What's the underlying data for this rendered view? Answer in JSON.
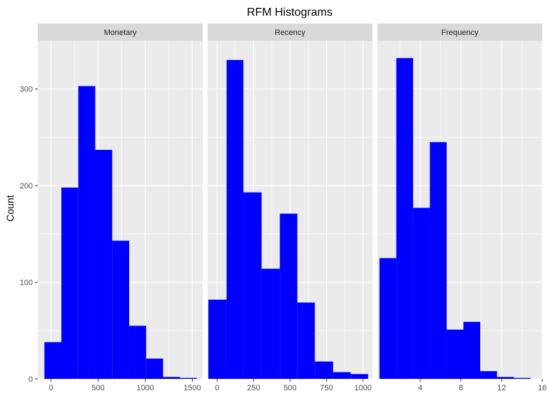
{
  "chart_data": {
    "type": "bar",
    "title": "RFM Histograms",
    "ylabel": "Count",
    "xlabel": "",
    "ylim": [
      0,
      350
    ],
    "yticks": [
      0,
      100,
      200,
      300
    ],
    "grid": true,
    "colors": {
      "bar": "#0000ff",
      "panel": "#ebebeb",
      "strip": "#d9d9d9",
      "grid": "#ffffff"
    },
    "panels": [
      {
        "name": "Monetary",
        "xlim": [
          -140,
          1610
        ],
        "xticks": [
          0,
          500,
          1000,
          1500
        ],
        "tick_labels": [
          "0",
          "500",
          "1000",
          "1500"
        ],
        "bins": [
          {
            "x0": -70,
            "x1": 110,
            "count": 38
          },
          {
            "x0": 110,
            "x1": 290,
            "count": 198
          },
          {
            "x0": 290,
            "x1": 470,
            "count": 303
          },
          {
            "x0": 470,
            "x1": 650,
            "count": 237
          },
          {
            "x0": 650,
            "x1": 830,
            "count": 143
          },
          {
            "x0": 830,
            "x1": 1010,
            "count": 55
          },
          {
            "x0": 1010,
            "x1": 1190,
            "count": 21
          },
          {
            "x0": 1190,
            "x1": 1370,
            "count": 2
          },
          {
            "x0": 1370,
            "x1": 1550,
            "count": 1
          }
        ]
      },
      {
        "name": "Recency",
        "xlim": [
          -65,
          1065
        ],
        "xticks": [
          0,
          250,
          500,
          750,
          1000
        ],
        "tick_labels": [
          "0",
          "250",
          "500",
          "750",
          "1000"
        ],
        "bins": [
          {
            "x0": -60,
            "x1": 65,
            "count": 82
          },
          {
            "x0": 65,
            "x1": 180,
            "count": 330
          },
          {
            "x0": 180,
            "x1": 305,
            "count": 193
          },
          {
            "x0": 305,
            "x1": 430,
            "count": 114
          },
          {
            "x0": 430,
            "x1": 550,
            "count": 171
          },
          {
            "x0": 550,
            "x1": 670,
            "count": 79
          },
          {
            "x0": 670,
            "x1": 795,
            "count": 18
          },
          {
            "x0": 795,
            "x1": 915,
            "count": 7
          },
          {
            "x0": 915,
            "x1": 1035,
            "count": 5
          }
        ]
      },
      {
        "name": "Frequency",
        "xlim": [
          -0.2,
          16.0
        ],
        "xticks": [
          4,
          8,
          12,
          16
        ],
        "tick_labels": [
          "4",
          "8",
          "12",
          "16"
        ],
        "bins": [
          {
            "x0": 0,
            "x1": 1.65,
            "count": 125
          },
          {
            "x0": 1.65,
            "x1": 3.3,
            "count": 332
          },
          {
            "x0": 3.3,
            "x1": 4.95,
            "count": 177
          },
          {
            "x0": 4.95,
            "x1": 6.6,
            "count": 245
          },
          {
            "x0": 6.6,
            "x1": 8.25,
            "count": 51
          },
          {
            "x0": 8.25,
            "x1": 9.9,
            "count": 59
          },
          {
            "x0": 9.9,
            "x1": 11.55,
            "count": 8
          },
          {
            "x0": 11.55,
            "x1": 13.2,
            "count": 2
          },
          {
            "x0": 13.2,
            "x1": 14.85,
            "count": 1
          }
        ]
      }
    ]
  }
}
